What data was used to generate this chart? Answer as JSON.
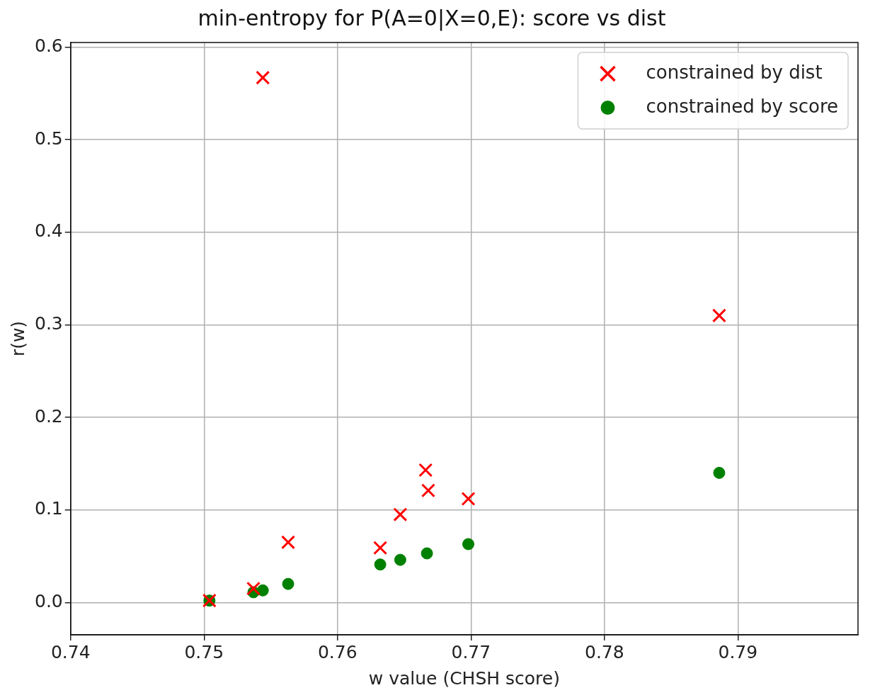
{
  "chart_data": {
    "type": "scatter",
    "title": "min-entropy for P(A=0|X=0,E): score vs dist",
    "xlabel": "w value (CHSH score)",
    "ylabel": "r(w)",
    "xlim": [
      0.74,
      0.799
    ],
    "ylim": [
      -0.035,
      0.605
    ],
    "xticks": [
      0.74,
      0.75,
      0.76,
      0.77,
      0.78,
      0.79
    ],
    "yticks": [
      {
        "value": 0,
        "label": "0.0"
      },
      0.1,
      0.2,
      0.3,
      0.4,
      0.5,
      0.6
    ],
    "grid": true,
    "legend": "top right",
    "series": [
      {
        "name": "constrained by dist",
        "color": "#ff0000",
        "marker": "cross",
        "x": [
          0.7544,
          0.7886,
          0.7666,
          0.7668,
          0.7698,
          0.7647,
          0.7563,
          0.7632,
          0.7537,
          0.7504
        ],
        "values": [
          0.567,
          0.31,
          0.143,
          0.121,
          0.112,
          0.095,
          0.065,
          0.059,
          0.015,
          0.002
        ]
      },
      {
        "name": "constrained by score",
        "color": "#008000",
        "marker": "circle",
        "x": [
          0.7886,
          0.7698,
          0.7667,
          0.7647,
          0.7632,
          0.7563,
          0.7544,
          0.7537,
          0.7504
        ],
        "values": [
          0.14,
          0.063,
          0.053,
          0.046,
          0.041,
          0.02,
          0.013,
          0.011,
          0.002
        ]
      }
    ]
  }
}
